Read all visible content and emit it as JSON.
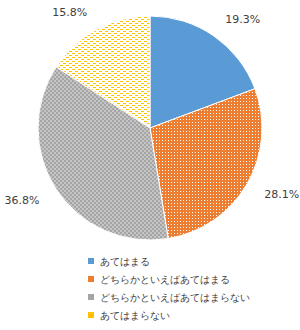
{
  "chart_data": {
    "type": "pie",
    "categories": [
      "あてはまる",
      "どちらかといえばあてはまる",
      "どちらかといえばあてはまらない",
      "あてはまらない"
    ],
    "values": [
      19.3,
      28.1,
      36.8,
      15.8
    ],
    "value_labels": [
      "19.3%",
      "28.1%",
      "36.8%",
      "15.8%"
    ],
    "colors": [
      "#5b9bd5",
      "#ed7d31",
      "#a5a5a5",
      "#ffc000"
    ],
    "data_labels": true,
    "legend": "bottom"
  }
}
